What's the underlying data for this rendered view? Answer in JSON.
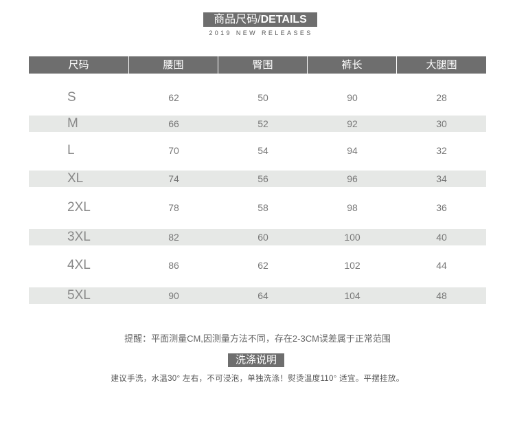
{
  "header": {
    "title_cn": "商品尺码/",
    "title_en": "DETAILS",
    "subtitle": "2019 NEW RELEASES"
  },
  "table": {
    "columns": [
      "尺码",
      "腰围",
      "臀围",
      "裤长",
      "大腿围"
    ],
    "rows": [
      {
        "size": "S",
        "values": [
          "62",
          "50",
          "90",
          "28"
        ]
      },
      {
        "size": "M",
        "values": [
          "66",
          "52",
          "92",
          "30"
        ]
      },
      {
        "size": "L",
        "values": [
          "70",
          "54",
          "94",
          "32"
        ]
      },
      {
        "size": "XL",
        "values": [
          "74",
          "56",
          "96",
          "34"
        ]
      },
      {
        "size": "2XL",
        "values": [
          "78",
          "58",
          "98",
          "36"
        ]
      },
      {
        "size": "3XL",
        "values": [
          "82",
          "60",
          "100",
          "40"
        ]
      },
      {
        "size": "4XL",
        "values": [
          "86",
          "62",
          "102",
          "44"
        ]
      },
      {
        "size": "5XL",
        "values": [
          "90",
          "64",
          "104",
          "48"
        ]
      }
    ]
  },
  "note": "提醒：平面测量CM,因测量方法不同，存在2-3CM误差属于正常范围",
  "washing": {
    "title": "洗涤说明",
    "text": "建议手洗，水温30° 左右，不可浸泡，单独洗涤！熨烫温度110° 适宜。平摆挂放。"
  },
  "colors": {
    "header_bg": "#6e6e6e",
    "stripe_bg": "#e6e8e6"
  }
}
